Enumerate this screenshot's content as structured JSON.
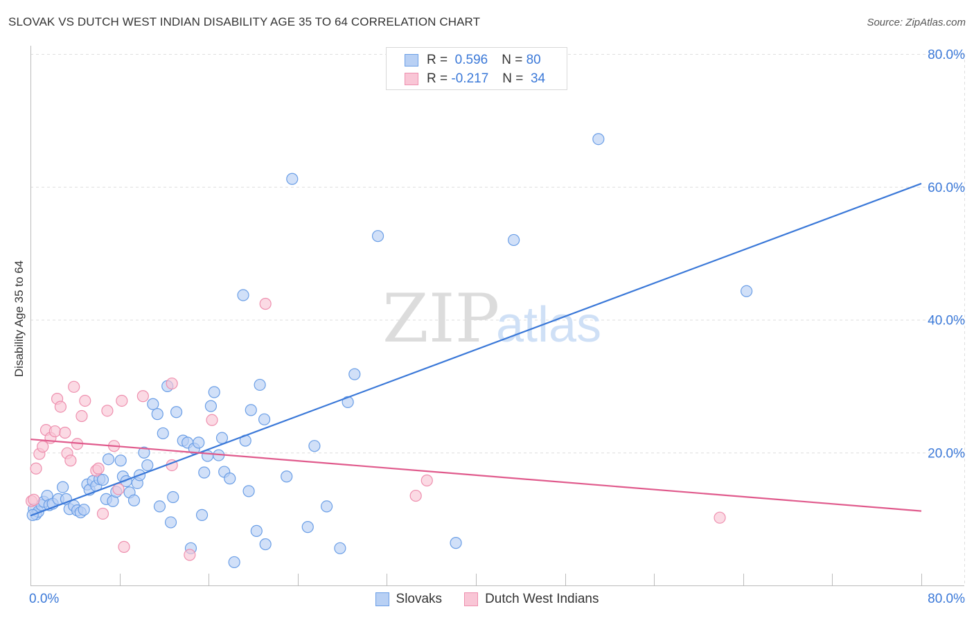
{
  "title": "SLOVAK VS DUTCH WEST INDIAN DISABILITY AGE 35 TO 64 CORRELATION CHART",
  "source": "Source: ZipAtlas.com",
  "watermark": {
    "zip": "ZIP",
    "atlas": "atlas"
  },
  "legend": {
    "r_label": "R =",
    "n_label": "N =",
    "rows": [
      {
        "name": "Slovaks",
        "r": "0.596",
        "n": "80",
        "fill": "#b8d0f4",
        "stroke": "#6a9ee6"
      },
      {
        "name": "Dutch West Indians",
        "r": "-0.217",
        "n": "34",
        "fill": "#f9c6d6",
        "stroke": "#ee8fae"
      }
    ]
  },
  "chart_data": {
    "type": "scatter",
    "title": "SLOVAK VS DUTCH WEST INDIAN DISABILITY AGE 35 TO 64 CORRELATION CHART",
    "xlabel": "",
    "ylabel": "Disability Age 35 to 64",
    "xlim": [
      0,
      80
    ],
    "ylim": [
      0,
      80
    ],
    "x_tick_labels": [
      "0.0%",
      "80.0%"
    ],
    "y_tick_values": [
      20,
      40,
      60,
      80
    ],
    "y_tick_labels": [
      "20.0%",
      "40.0%",
      "60.0%",
      "80.0%"
    ],
    "grid": true,
    "series": [
      {
        "name": "Slovaks",
        "color": "#3a78d8",
        "fill": "#b8d0f4",
        "trend": {
          "x": [
            0,
            80
          ],
          "y": [
            10.5,
            60.5
          ]
        },
        "points": [
          [
            0.3,
            11.5
          ],
          [
            0.5,
            10.7
          ],
          [
            0.7,
            11.1
          ],
          [
            1.0,
            12.1
          ],
          [
            1.2,
            12.6
          ],
          [
            1.5,
            13.5
          ],
          [
            1.7,
            12.1
          ],
          [
            2.0,
            12.3
          ],
          [
            2.5,
            13.0
          ],
          [
            2.9,
            14.8
          ],
          [
            3.2,
            13.0
          ],
          [
            3.5,
            11.5
          ],
          [
            3.9,
            12.0
          ],
          [
            4.2,
            11.3
          ],
          [
            4.5,
            11.0
          ],
          [
            4.8,
            11.4
          ],
          [
            5.1,
            15.2
          ],
          [
            5.3,
            14.4
          ],
          [
            5.6,
            15.7
          ],
          [
            5.9,
            15.0
          ],
          [
            6.2,
            16.0
          ],
          [
            6.5,
            15.9
          ],
          [
            6.8,
            13.0
          ],
          [
            7.0,
            19.0
          ],
          [
            7.4,
            12.7
          ],
          [
            7.7,
            14.1
          ],
          [
            8.1,
            18.8
          ],
          [
            8.3,
            16.4
          ],
          [
            8.6,
            15.7
          ],
          [
            8.9,
            14.0
          ],
          [
            9.3,
            12.8
          ],
          [
            9.6,
            15.4
          ],
          [
            9.8,
            16.6
          ],
          [
            10.2,
            20.0
          ],
          [
            10.5,
            18.1
          ],
          [
            11.0,
            27.3
          ],
          [
            11.4,
            25.8
          ],
          [
            11.6,
            11.9
          ],
          [
            11.9,
            22.9
          ],
          [
            12.3,
            30.0
          ],
          [
            12.6,
            9.5
          ],
          [
            12.8,
            13.3
          ],
          [
            13.1,
            26.1
          ],
          [
            13.7,
            21.8
          ],
          [
            14.1,
            21.5
          ],
          [
            14.4,
            5.6
          ],
          [
            14.7,
            20.6
          ],
          [
            15.1,
            21.5
          ],
          [
            15.4,
            10.6
          ],
          [
            15.6,
            17.0
          ],
          [
            15.9,
            19.5
          ],
          [
            16.2,
            27.0
          ],
          [
            16.5,
            29.1
          ],
          [
            16.9,
            19.6
          ],
          [
            17.2,
            22.2
          ],
          [
            17.4,
            17.1
          ],
          [
            17.9,
            16.1
          ],
          [
            18.3,
            3.5
          ],
          [
            19.1,
            43.7
          ],
          [
            19.3,
            21.8
          ],
          [
            19.6,
            14.2
          ],
          [
            19.8,
            26.4
          ],
          [
            20.3,
            8.2
          ],
          [
            20.6,
            30.2
          ],
          [
            21.0,
            25.0
          ],
          [
            21.1,
            6.2
          ],
          [
            23.0,
            16.4
          ],
          [
            23.5,
            61.2
          ],
          [
            24.9,
            8.8
          ],
          [
            25.5,
            21.0
          ],
          [
            26.6,
            11.9
          ],
          [
            27.8,
            5.6
          ],
          [
            28.5,
            27.6
          ],
          [
            29.1,
            31.8
          ],
          [
            31.2,
            52.6
          ],
          [
            38.2,
            6.4
          ],
          [
            43.4,
            52.0
          ],
          [
            51.0,
            67.2
          ],
          [
            64.3,
            44.3
          ],
          [
            0.2,
            10.6
          ]
        ]
      },
      {
        "name": "Dutch West Indians",
        "color": "#e05a8c",
        "fill": "#f9c6d6",
        "trend": {
          "x": [
            0,
            80
          ],
          "y": [
            22.0,
            11.2
          ]
        },
        "points": [
          [
            0.1,
            12.7
          ],
          [
            0.5,
            17.6
          ],
          [
            0.8,
            19.8
          ],
          [
            1.1,
            20.9
          ],
          [
            1.4,
            23.4
          ],
          [
            1.8,
            22.2
          ],
          [
            2.2,
            23.2
          ],
          [
            2.4,
            28.1
          ],
          [
            2.7,
            26.9
          ],
          [
            3.1,
            23.0
          ],
          [
            3.3,
            19.9
          ],
          [
            3.6,
            18.8
          ],
          [
            3.9,
            29.9
          ],
          [
            4.2,
            21.3
          ],
          [
            4.6,
            25.5
          ],
          [
            4.9,
            27.8
          ],
          [
            5.9,
            17.3
          ],
          [
            6.1,
            17.6
          ],
          [
            6.5,
            10.8
          ],
          [
            6.9,
            26.3
          ],
          [
            7.5,
            21.0
          ],
          [
            7.9,
            14.5
          ],
          [
            8.2,
            27.8
          ],
          [
            8.4,
            5.8
          ],
          [
            10.1,
            28.5
          ],
          [
            12.7,
            18.1
          ],
          [
            12.7,
            30.4
          ],
          [
            14.3,
            4.6
          ],
          [
            16.3,
            24.9
          ],
          [
            21.1,
            42.4
          ],
          [
            34.6,
            13.5
          ],
          [
            35.6,
            15.8
          ],
          [
            61.9,
            10.2
          ],
          [
            0.3,
            12.9
          ]
        ]
      }
    ]
  }
}
